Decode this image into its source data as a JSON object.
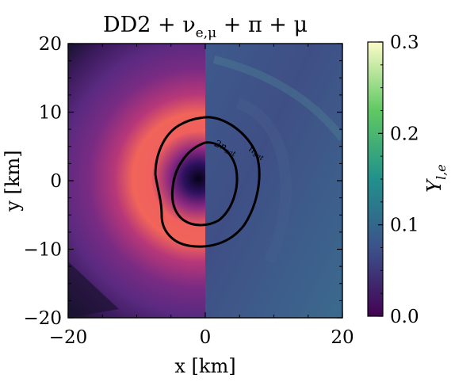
{
  "chart_data": {
    "type": "heatmap",
    "title": "DD2 + ν_e,μ + π + μ",
    "title_parts": {
      "base": "DD2 + ν",
      "sub": "e,μ",
      "rest": " + π + μ"
    },
    "xlabel": "x [km]",
    "ylabel": "y [km]",
    "xlim": [
      -20,
      20
    ],
    "ylim": [
      -20,
      20
    ],
    "x_ticks": [
      -20,
      0,
      20
    ],
    "x_tick_labels": [
      "−20",
      "0",
      "20"
    ],
    "y_ticks": [
      -20,
      -10,
      0,
      10,
      20
    ],
    "y_tick_labels": [
      "−20",
      "−10",
      "0",
      "10",
      "20"
    ],
    "colorbar": {
      "label": "Y",
      "label_sub": "l,e",
      "range": [
        0.0,
        0.3
      ],
      "ticks": [
        0.0,
        0.1,
        0.2,
        0.3
      ],
      "tick_labels": [
        "0.0",
        "0.1",
        "0.2",
        "0.3"
      ],
      "colormap": "viridis"
    },
    "left_half_colormap": "magma",
    "contours": [
      {
        "label": "2n",
        "label_sub": "sat",
        "level": "2 n_sat"
      },
      {
        "label": "n",
        "label_sub": "sat",
        "level": "n_sat"
      }
    ],
    "contour_color": "#000000",
    "grid": false
  }
}
